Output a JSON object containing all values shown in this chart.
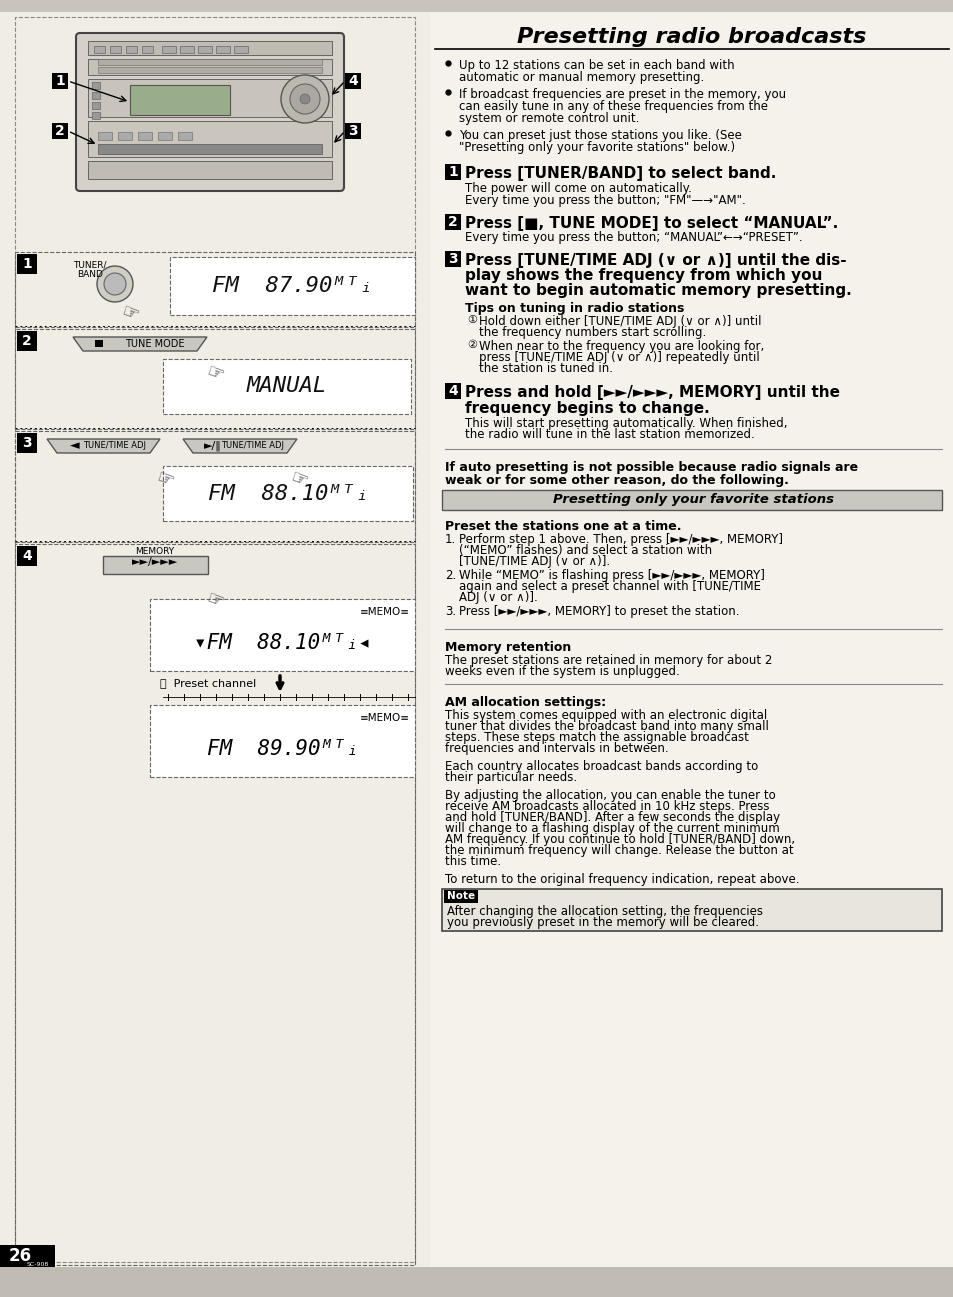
{
  "page_bg": "#f2f0e8",
  "title": "Presetting radio broadcasts",
  "intro_bullets": [
    "Up to 12 stations can be set in each band with automatic or manual memory presetting.",
    "If broadcast frequencies are preset in the memory, you can easily tune in any of these frequencies from the system or remote control unit.",
    "You can preset just those stations you like. (See \"Presetting only your favorite stations\" below.)"
  ],
  "step1_heading": "Press [TUNER/BAND] to select band.",
  "step1_body1": "The power will come on automatically.",
  "step1_body2": "Every time you press the button; \"FM\"—→\"AM\".",
  "step2_heading": "Press [■, TUNE MODE] to select “MANUAL”.",
  "step2_body": "Every time you press the button; “MANUAL”←→“PRESET”.",
  "step3_heading_line1": "Press [TUNE/TIME ADJ (∨ or ∧)] until the dis-",
  "step3_heading_line2": "play shows the frequency from which you",
  "step3_heading_line3": "want to begin automatic memory presetting.",
  "step3_tips_heading": "Tips on tuning in radio stations",
  "step3_tip1": "Hold down either [TUNE/TIME ADJ (∨ or ∧)] until the frequency numbers start scrolling.",
  "step3_tip2": "When near to the frequency you are looking for, press [TUNE/TIME ADJ (∨ or ∧)] repeatedly until the station is tuned in.",
  "step4_heading_line1": "Press and hold [►►/►►►, MEMORY] until the",
  "step4_heading_line2": "frequency begins to change.",
  "step4_body": "This will start presetting automatically. When finished, the radio will tune in the last station memorized.",
  "auto_note_line1": "If auto presetting is not possible because radio signals are",
  "auto_note_line2": "weak or for some other reason, do the following.",
  "preset_fav_title": "Presetting only your favorite stations",
  "preset_fav_bold": "Preset the stations one at a time.",
  "preset_fav_step1": "Perform step 1 above. Then, press [►►/►►►, MEMORY] (“MEMO” flashes) and select a station with [TUNE/TIME ADJ (∨ or ∧)].",
  "preset_fav_step2": "While “MEMO” is flashing press [►►/►►►, MEMORY] again and select a preset channel with [TUNE/TIME ADJ (∨ or ∧)].",
  "preset_fav_step3": "Press [►►/►►►, MEMORY] to preset the station.",
  "memory_retention_title": "Memory retention",
  "memory_retention_body": "The preset stations are retained in memory for about 2 weeks even if the system is unplugged.",
  "am_alloc_title": "AM allocation settings:",
  "am_alloc_para1": "This system comes equipped with an electronic digital tuner that divides the broadcast band into many small steps. These steps match the assignable broadcast frequencies and intervals in between.",
  "am_alloc_para2": "Each country allocates broadcast bands according to their particular needs.",
  "am_alloc_para3": "By adjusting the allocation, you can enable the tuner to receive AM broadcasts allocated in 10 kHz steps. Press and hold [TUNER/BAND]. After a few seconds the display will change to a flashing display of the current minimum AM frequency. If you continue to hold [TUNER/BAND] down, the minimum frequency will change. Release the button at this time.",
  "to_return": "To return to the original frequency indication, repeat above.",
  "note_title": "Note",
  "note_body": "After changing the allocation setting, the frequencies you previously preset in the memory will be cleared.",
  "page_number": "26"
}
